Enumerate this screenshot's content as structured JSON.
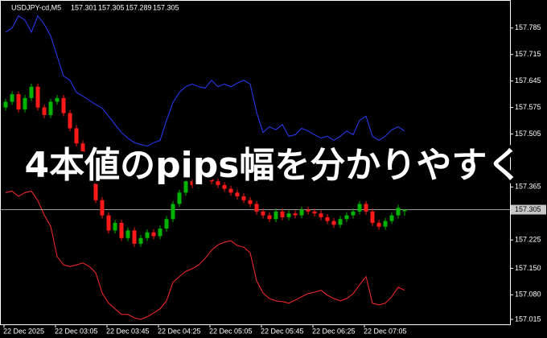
{
  "chart_data": {
    "type": "candlestick",
    "title": "USDJPY-cd,M5",
    "annotation": "4本値のpips幅を分かりやすく",
    "categories": [
      "22 Dec 2025",
      null,
      null,
      null,
      null,
      null,
      null,
      null,
      "22 Dec 03:05",
      null,
      null,
      null,
      null,
      null,
      null,
      null,
      "22 Dec 03:45",
      null,
      null,
      null,
      null,
      null,
      null,
      null,
      "22 Dec 04:25",
      null,
      null,
      null,
      null,
      null,
      null,
      null,
      "22 Dec 05:05",
      null,
      null,
      null,
      null,
      null,
      null,
      null,
      "22 Dec 05:45",
      null,
      null,
      null,
      null,
      null,
      null,
      null,
      "22 Dec 06:25",
      null,
      null,
      null,
      null,
      null,
      null,
      null,
      "22 Dec 07:05",
      null,
      null,
      null,
      null,
      null,
      null
    ],
    "open": [
      157.575,
      157.59,
      157.61,
      157.57,
      157.6,
      157.63,
      157.575,
      157.555,
      157.59,
      157.6,
      157.56,
      157.52,
      157.48,
      157.44,
      157.39,
      157.33,
      157.29,
      157.25,
      157.27,
      157.23,
      157.25,
      157.215,
      157.23,
      157.245,
      157.235,
      157.255,
      157.28,
      157.32,
      157.35,
      157.38,
      157.37,
      157.39,
      157.4,
      157.38,
      157.37,
      157.36,
      157.35,
      157.34,
      157.33,
      157.32,
      157.3,
      157.29,
      157.28,
      157.3,
      157.285,
      157.295,
      157.29,
      157.305,
      157.3,
      157.295,
      157.285,
      157.275,
      157.265,
      157.28,
      157.29,
      157.3,
      157.32,
      157.3,
      157.27,
      157.26,
      157.275,
      157.29,
      157.301
    ],
    "high": [
      157.598,
      157.618,
      157.618,
      157.608,
      157.638,
      157.638,
      157.583,
      157.598,
      157.608,
      157.608,
      157.568,
      157.528,
      157.488,
      157.448,
      157.398,
      157.338,
      157.298,
      157.278,
      157.278,
      157.258,
      157.258,
      157.238,
      157.253,
      157.253,
      157.263,
      157.288,
      157.328,
      157.358,
      157.388,
      157.388,
      157.398,
      157.408,
      157.408,
      157.388,
      157.378,
      157.368,
      157.358,
      157.348,
      157.338,
      157.328,
      157.308,
      157.298,
      157.308,
      157.308,
      157.303,
      157.303,
      157.313,
      157.313,
      157.308,
      157.303,
      157.293,
      157.283,
      157.288,
      157.298,
      157.308,
      157.328,
      157.328,
      157.308,
      157.278,
      157.283,
      157.298,
      157.318,
      157.305
    ],
    "low": [
      157.567,
      157.582,
      157.562,
      157.562,
      157.592,
      157.567,
      157.547,
      157.547,
      157.582,
      157.552,
      157.512,
      157.472,
      157.432,
      157.382,
      157.322,
      157.282,
      157.242,
      157.242,
      157.222,
      157.222,
      157.207,
      157.207,
      157.222,
      157.227,
      157.227,
      157.247,
      157.272,
      157.312,
      157.342,
      157.362,
      157.362,
      157.382,
      157.372,
      157.362,
      157.352,
      157.342,
      157.332,
      157.322,
      157.312,
      157.292,
      157.282,
      157.272,
      157.272,
      157.277,
      157.277,
      157.282,
      157.282,
      157.292,
      157.287,
      157.277,
      157.267,
      157.257,
      157.257,
      157.272,
      157.282,
      157.292,
      157.292,
      157.262,
      157.252,
      157.252,
      157.267,
      157.282,
      157.289
    ],
    "close": [
      157.59,
      157.61,
      157.57,
      157.6,
      157.63,
      157.575,
      157.555,
      157.59,
      157.6,
      157.56,
      157.52,
      157.48,
      157.44,
      157.39,
      157.33,
      157.29,
      157.25,
      157.27,
      157.23,
      157.25,
      157.215,
      157.23,
      157.245,
      157.235,
      157.255,
      157.28,
      157.32,
      157.35,
      157.38,
      157.37,
      157.39,
      157.4,
      157.38,
      157.37,
      157.36,
      157.35,
      157.34,
      157.33,
      157.32,
      157.3,
      157.29,
      157.28,
      157.3,
      157.285,
      157.295,
      157.29,
      157.305,
      157.3,
      157.295,
      157.285,
      157.275,
      157.265,
      157.28,
      157.29,
      157.3,
      157.32,
      157.3,
      157.27,
      157.26,
      157.275,
      157.29,
      157.31,
      157.305
    ],
    "up_color": "#00b400",
    "down_color": "#ff1a1a",
    "bands": [
      {
        "color": "#2a3cff",
        "values": [
          157.774,
          157.785,
          157.817,
          157.806,
          157.774,
          157.817,
          157.795,
          157.764,
          157.711,
          157.658,
          157.647,
          157.615,
          157.605,
          157.594,
          157.583,
          157.573,
          157.552,
          157.53,
          157.509,
          157.494,
          157.482,
          157.477,
          157.473,
          157.482,
          157.488,
          157.541,
          157.588,
          157.615,
          157.63,
          157.637,
          157.63,
          157.626,
          157.647,
          157.63,
          157.637,
          157.63,
          157.639,
          157.647,
          157.637,
          157.562,
          157.509,
          157.524,
          157.516,
          157.53,
          157.499,
          157.503,
          157.52,
          157.513,
          157.503,
          157.494,
          157.499,
          157.488,
          157.499,
          157.513,
          157.503,
          157.541,
          157.552,
          157.499,
          157.488,
          157.499,
          157.516,
          157.524,
          157.513
        ]
      },
      {
        "color": "#ff2a2a",
        "values": [
          157.35,
          157.354,
          157.34,
          157.35,
          157.354,
          157.329,
          157.291,
          157.261,
          157.181,
          157.159,
          157.155,
          157.159,
          157.164,
          157.155,
          157.138,
          157.085,
          157.058,
          157.043,
          157.028,
          157.028,
          157.019,
          157.015,
          157.022,
          157.032,
          157.043,
          157.064,
          157.113,
          157.128,
          157.142,
          157.149,
          157.159,
          157.176,
          157.198,
          157.212,
          157.219,
          157.223,
          157.21,
          157.206,
          157.191,
          157.117,
          157.085,
          157.07,
          157.064,
          157.062,
          157.058,
          157.066,
          157.075,
          157.083,
          157.087,
          157.092,
          157.079,
          157.07,
          157.064,
          157.07,
          157.083,
          157.106,
          157.128,
          157.058,
          157.053,
          157.058,
          157.075,
          157.1,
          157.092
        ]
      }
    ],
    "last_price": 157.305,
    "ylim": [
      157.002,
      157.859
    ],
    "yticks": [
      157.015,
      {
        "value": 157.08,
        "label": "157.080"
      },
      {
        "value": 157.15,
        "label": "157.150"
      },
      157.225,
      157.365,
      157.505,
      157.575,
      157.645,
      157.715,
      157.785
    ]
  }
}
